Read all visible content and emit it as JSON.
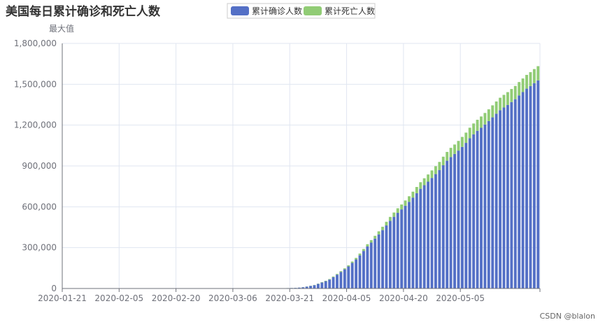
{
  "chart_data": {
    "type": "bar",
    "stacked": true,
    "title": "美国每日累计确诊和死亡人数",
    "ylabel": "最大值",
    "ylim": [
      0,
      1800000
    ],
    "grid": true,
    "legend_position": "top-center",
    "y_ticks": [
      "1,800,000",
      "1,500,000",
      "1,200,000",
      "900,000",
      "600,000",
      "300,000",
      "0"
    ],
    "x_ticks": [
      "2020-01-21",
      "2020-02-05",
      "2020-02-20",
      "2020-03-06",
      "2020-03-21",
      "2020-04-05",
      "2020-04-20",
      "2020-05-05"
    ],
    "series": [
      {
        "name": "累计确诊人数",
        "color": "#5470c6",
        "values": [
          1,
          1,
          1,
          2,
          2,
          5,
          5,
          5,
          5,
          6,
          7,
          8,
          11,
          11,
          11,
          12,
          12,
          12,
          12,
          12,
          13,
          13,
          14,
          14,
          14,
          14,
          14,
          15,
          15,
          15,
          15,
          15,
          15,
          15,
          15,
          15,
          15,
          35,
          35,
          35,
          53,
          57,
          60,
          60,
          63,
          68,
          75,
          100,
          124,
          158,
          221,
          319,
          435,
          541,
          704,
          994,
          1301,
          1697,
          2247,
          2943,
          3680,
          4663,
          6411,
          9197,
          13779,
          19367,
          24614,
          34008,
          43665,
          53740,
          65778,
          83836,
          101657,
          121465,
          140909,
          161831,
          188172,
          213242,
          243622,
          275367,
          308650,
          336802,
          366317,
          397121,
          428654,
          462780,
          496535,
          526396,
          555313,
          580619,
          607670,
          636350,
          667592,
          699706,
          732197,
          758809,
          784326,
          811865,
          840351,
          869170,
          905358,
          938154,
          965785,
          988197,
          1012582,
          1039909,
          1069424,
          1103461,
          1132539,
          1158040,
          1180375,
          1204351,
          1229331,
          1257023,
          1283929,
          1309550,
          1329260,
          1347881,
          1369376,
          1390406,
          1417774,
          1442824,
          1467820,
          1486757,
          1508308,
          1528568
        ]
      },
      {
        "name": "累计死亡人数",
        "color": "#91cc75",
        "values": [
          0,
          0,
          0,
          0,
          0,
          0,
          0,
          0,
          0,
          0,
          0,
          0,
          0,
          0,
          0,
          0,
          0,
          0,
          0,
          0,
          0,
          0,
          0,
          0,
          0,
          0,
          0,
          0,
          0,
          0,
          0,
          0,
          0,
          0,
          0,
          0,
          0,
          0,
          0,
          0,
          1,
          1,
          6,
          9,
          11,
          12,
          15,
          19,
          22,
          26,
          30,
          38,
          41,
          48,
          58,
          73,
          107,
          150,
          210,
          260,
          320,
          400,
          510,
          690,
          940,
          1210,
          1570,
          2020,
          2510,
          3050,
          3700,
          4500,
          5300,
          6200,
          7300,
          8500,
          9800,
          11300,
          12900,
          14700,
          16600,
          18600,
          20600,
          22700,
          24800,
          27000,
          29200,
          31500,
          33900,
          36300,
          38700,
          41100,
          43500,
          45900,
          48300,
          50700,
          53100,
          55500,
          57900,
          60300,
          62700,
          64900,
          67100,
          69200,
          71300,
          73400,
          75400,
          77400,
          79300,
          81200,
          83000,
          84800,
          86500,
          88200,
          89800,
          91400,
          92900,
          94400,
          95800,
          97200,
          98500,
          99800,
          101000,
          102200,
          103300,
          104400
        ]
      }
    ]
  },
  "watermark": "CSDN @blalon"
}
